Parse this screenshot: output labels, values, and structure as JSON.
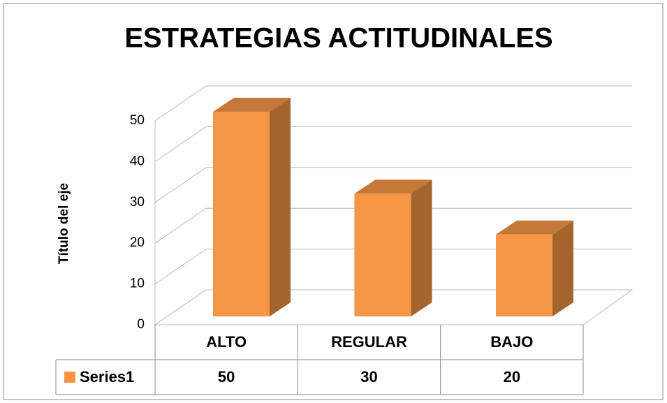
{
  "chart_data": {
    "type": "bar3d",
    "title": "ESTRATEGIAS ACTITUDINALES",
    "y_label": "Título del eje",
    "categories": [
      "ALTO",
      "REGULAR",
      "BAJO"
    ],
    "series": [
      {
        "name": "Series1",
        "color": "#f79646",
        "values": [
          50,
          30,
          20
        ]
      }
    ],
    "ylim": [
      0,
      50
    ],
    "yticks": [
      0,
      10,
      20,
      30,
      40,
      50
    ],
    "grid": true,
    "data_table": true
  }
}
